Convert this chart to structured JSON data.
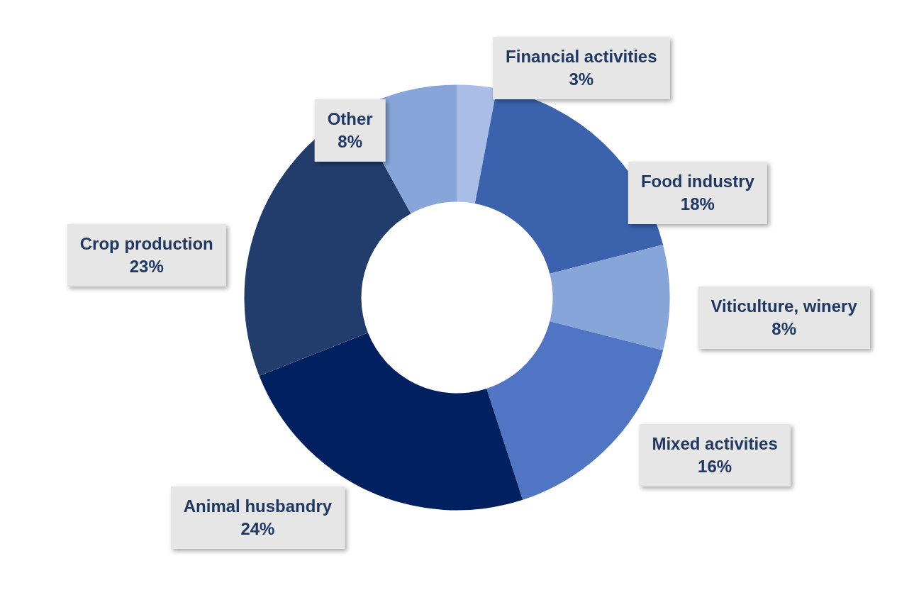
{
  "chart_data": {
    "type": "donut",
    "categories": [
      "Financial activities",
      "Food industry",
      "Viticulture, winery",
      "Mixed activities",
      "Animal husbandry",
      "Crop production",
      "Other"
    ],
    "values": [
      3,
      18,
      8,
      16,
      24,
      23,
      8
    ],
    "colors": [
      "#a9bde6",
      "#3a62ad",
      "#87a5d8",
      "#4f75c4",
      "#00205f",
      "#223c6c",
      "#87a5d8"
    ],
    "value_labels": [
      "3%",
      "18%",
      "8%",
      "16%",
      "24%",
      "23%",
      "8%"
    ],
    "legend": false
  }
}
